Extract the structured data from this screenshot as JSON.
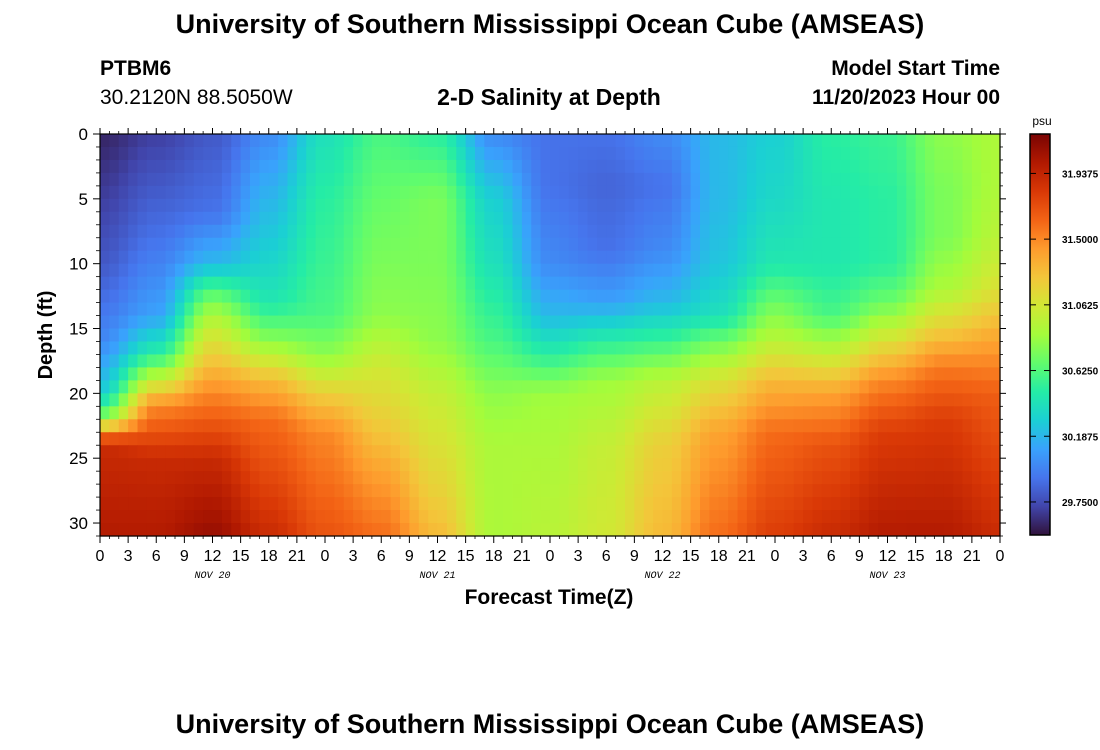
{
  "header": {
    "title": "University of Southern Mississippi Ocean Cube (AMSEAS)",
    "station": "PTBM6",
    "coords": "30.2120N  88.5050W",
    "plot_title": "2-D Salinity at Depth",
    "model_label": "Model Start Time",
    "model_time": "11/20/2023 Hour 00"
  },
  "footer": {
    "title": "University of Southern Mississippi Ocean Cube (AMSEAS)"
  },
  "chart_data": {
    "type": "heatmap",
    "title": "2-D Salinity at Depth",
    "xlabel": "Forecast Time(Z)",
    "ylabel": "Depth (ft)",
    "xlim": [
      0,
      96
    ],
    "ylim": [
      0,
      31
    ],
    "x_ticks": [
      0,
      3,
      6,
      9,
      12,
      15,
      18,
      21,
      24,
      27,
      30,
      33,
      36,
      39,
      42,
      45,
      48,
      51,
      54,
      57,
      60,
      63,
      66,
      69,
      72,
      75,
      78,
      81,
      84,
      87,
      90,
      93,
      96
    ],
    "x_tick_labels": [
      "0",
      "3",
      "6",
      "9",
      "12",
      "15",
      "18",
      "21",
      "0",
      "3",
      "6",
      "9",
      "12",
      "15",
      "18",
      "21",
      "0",
      "3",
      "6",
      "9",
      "12",
      "15",
      "18",
      "21",
      "0",
      "3",
      "6",
      "9",
      "12",
      "15",
      "18",
      "21",
      "0"
    ],
    "y_ticks": [
      0,
      5,
      10,
      15,
      20,
      25,
      30
    ],
    "y_tick_labels": [
      "0",
      "5",
      "10",
      "15",
      "20",
      "25",
      "30"
    ],
    "day_labels": [
      {
        "text": "NOV 20",
        "x": 12
      },
      {
        "text": "NOV 21",
        "x": 36
      },
      {
        "text": "NOV 22",
        "x": 60
      },
      {
        "text": "NOV 23",
        "x": 84
      }
    ],
    "colorbar": {
      "unit": "psu",
      "min": 29.53,
      "max": 32.2,
      "ticks": [
        29.75,
        30.1875,
        30.625,
        31.0625,
        31.5,
        31.9375
      ],
      "tick_labels": [
        "29.7500",
        "30.1875",
        "30.6250",
        "31.0625",
        "31.5000",
        "31.9375"
      ],
      "stops": [
        "#30123b",
        "#4145ab",
        "#4675ed",
        "#39a2fc",
        "#1bcfd4",
        "#24eca6",
        "#61fc6c",
        "#a4fc3b",
        "#d1e834",
        "#f3c63a",
        "#fe9b2d",
        "#f36315",
        "#d93806",
        "#b11901",
        "#7a0403"
      ]
    },
    "key_profiles": [
      {
        "t": 0,
        "z": [
          0,
          10,
          16,
          20,
          22,
          23,
          24,
          31
        ],
        "s": [
          29.6,
          29.8,
          30.0,
          30.3,
          30.8,
          31.5,
          31.9,
          32.0
        ]
      },
      {
        "t": 6,
        "z": [
          0,
          8,
          14,
          17,
          19,
          21,
          25,
          31
        ],
        "s": [
          29.7,
          29.9,
          30.1,
          30.5,
          31.0,
          31.5,
          31.9,
          32.0
        ]
      },
      {
        "t": 12,
        "z": [
          0,
          6,
          10,
          12,
          14,
          17,
          20,
          25,
          31
        ],
        "s": [
          29.8,
          29.9,
          30.2,
          30.6,
          30.9,
          31.2,
          31.5,
          31.9,
          32.1
        ]
      },
      {
        "t": 18,
        "z": [
          0,
          4,
          9,
          13,
          16,
          19,
          22,
          31
        ],
        "s": [
          30.0,
          30.15,
          30.3,
          30.45,
          30.8,
          31.3,
          31.6,
          31.9
        ]
      },
      {
        "t": 24,
        "z": [
          0,
          5,
          10,
          14,
          17,
          20,
          23,
          31
        ],
        "s": [
          30.4,
          30.5,
          30.55,
          30.6,
          30.8,
          31.2,
          31.5,
          31.7
        ]
      },
      {
        "t": 30,
        "z": [
          0,
          6,
          10,
          14,
          18,
          22,
          26,
          31
        ],
        "s": [
          30.6,
          30.7,
          30.75,
          30.8,
          31.05,
          31.2,
          31.4,
          31.6
        ]
      },
      {
        "t": 36,
        "z": [
          0,
          5,
          10,
          16,
          20,
          24,
          28,
          31
        ],
        "s": [
          30.5,
          30.75,
          30.75,
          30.8,
          31.0,
          31.1,
          31.2,
          31.3
        ]
      },
      {
        "t": 42,
        "z": [
          0,
          5,
          10,
          16,
          20,
          24,
          31
        ],
        "s": [
          30.0,
          30.3,
          30.4,
          30.6,
          30.8,
          30.9,
          30.9
        ]
      },
      {
        "t": 48,
        "z": [
          0,
          4,
          10,
          14,
          17,
          20,
          24,
          31
        ],
        "s": [
          29.9,
          29.9,
          30.0,
          30.2,
          30.5,
          30.85,
          30.9,
          30.95
        ]
      },
      {
        "t": 54,
        "z": [
          0,
          4,
          9,
          13,
          16,
          19,
          24,
          31
        ],
        "s": [
          29.9,
          29.85,
          29.9,
          30.1,
          30.5,
          30.85,
          31.0,
          31.05
        ]
      },
      {
        "t": 60,
        "z": [
          0,
          4,
          9,
          13,
          16,
          19,
          24,
          31
        ],
        "s": [
          30.0,
          29.9,
          30.0,
          30.2,
          30.55,
          30.95,
          31.2,
          31.3
        ]
      },
      {
        "t": 66,
        "z": [
          0,
          5,
          10,
          14,
          16,
          19,
          23,
          31
        ],
        "s": [
          30.2,
          30.2,
          30.25,
          30.4,
          30.7,
          31.1,
          31.4,
          31.6
        ]
      },
      {
        "t": 72,
        "z": [
          0,
          5,
          10,
          13,
          16,
          19,
          23,
          31
        ],
        "s": [
          30.3,
          30.35,
          30.45,
          30.7,
          30.95,
          31.3,
          31.6,
          31.8
        ]
      },
      {
        "t": 78,
        "z": [
          0,
          5,
          10,
          14,
          17,
          20,
          24,
          31
        ],
        "s": [
          30.5,
          30.45,
          30.45,
          30.6,
          31.0,
          31.4,
          31.7,
          31.9
        ]
      },
      {
        "t": 84,
        "z": [
          0,
          5,
          10,
          13,
          16,
          19,
          23,
          31
        ],
        "s": [
          30.55,
          30.5,
          30.5,
          30.7,
          31.1,
          31.5,
          31.8,
          32.0
        ]
      },
      {
        "t": 90,
        "z": [
          0,
          4,
          8,
          12,
          15,
          18,
          22,
          31
        ],
        "s": [
          30.8,
          30.75,
          30.75,
          30.9,
          31.2,
          31.55,
          31.8,
          32.0
        ]
      },
      {
        "t": 96,
        "z": [
          0,
          4,
          8,
          12,
          16,
          20,
          31
        ],
        "s": [
          30.9,
          30.9,
          30.95,
          31.1,
          31.4,
          31.65,
          31.9
        ]
      }
    ]
  }
}
